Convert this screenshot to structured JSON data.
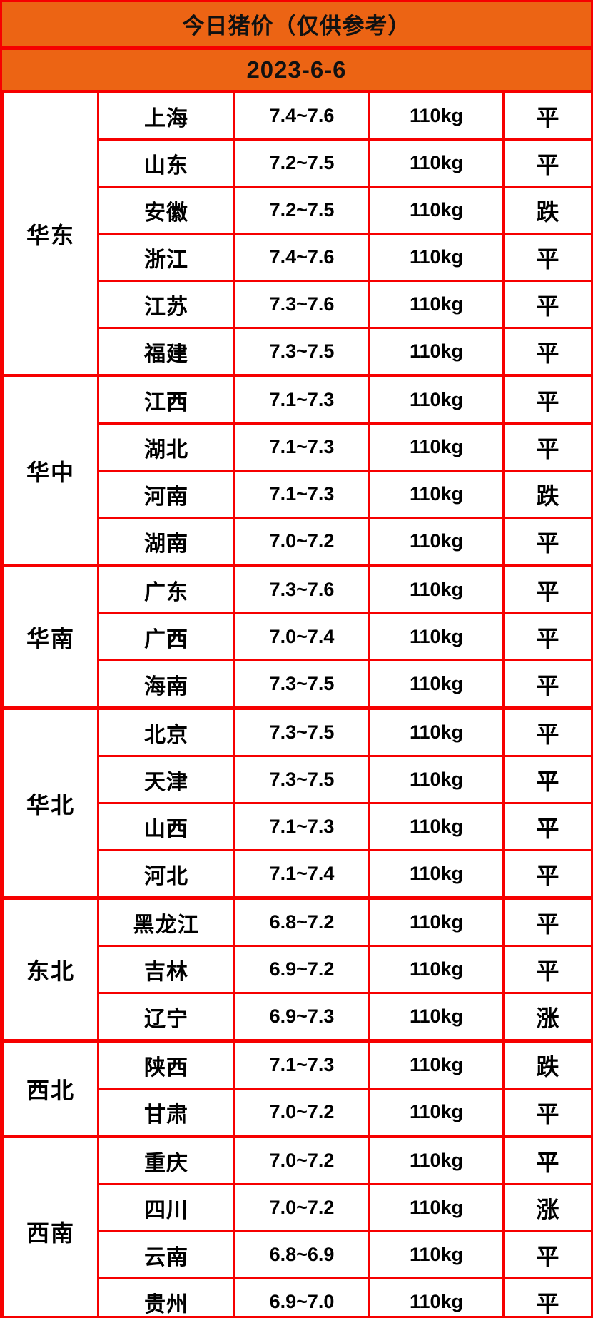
{
  "header": {
    "title": "今日猪价（仅供参考）",
    "date": "2023-6-6"
  },
  "colors": {
    "band_orange": "#ec6414",
    "grid_red": "#f60000",
    "status_flat": "#000000",
    "status_down_green": "#2fd300",
    "status_up_red": "#fb4a5a"
  },
  "table": {
    "status_class_map": {
      "平": "flat",
      "跌": "down",
      "涨": "up"
    },
    "regions": [
      {
        "name": "华东",
        "rows": [
          {
            "province": "上海",
            "price": "7.4~7.6",
            "weight": "110kg",
            "status": "平"
          },
          {
            "province": "山东",
            "price": "7.2~7.5",
            "weight": "110kg",
            "status": "平"
          },
          {
            "province": "安徽",
            "price": "7.2~7.5",
            "weight": "110kg",
            "status": "跌"
          },
          {
            "province": "浙江",
            "price": "7.4~7.6",
            "weight": "110kg",
            "status": "平"
          },
          {
            "province": "江苏",
            "price": "7.3~7.6",
            "weight": "110kg",
            "status": "平"
          },
          {
            "province": "福建",
            "price": "7.3~7.5",
            "weight": "110kg",
            "status": "平"
          }
        ]
      },
      {
        "name": "华中",
        "rows": [
          {
            "province": "江西",
            "price": "7.1~7.3",
            "weight": "110kg",
            "status": "平"
          },
          {
            "province": "湖北",
            "price": "7.1~7.3",
            "weight": "110kg",
            "status": "平"
          },
          {
            "province": "河南",
            "price": "7.1~7.3",
            "weight": "110kg",
            "status": "跌"
          },
          {
            "province": "湖南",
            "price": "7.0~7.2",
            "weight": "110kg",
            "status": "平"
          }
        ]
      },
      {
        "name": "华南",
        "rows": [
          {
            "province": "广东",
            "price": "7.3~7.6",
            "weight": "110kg",
            "status": "平"
          },
          {
            "province": "广西",
            "price": "7.0~7.4",
            "weight": "110kg",
            "status": "平"
          },
          {
            "province": "海南",
            "price": "7.3~7.5",
            "weight": "110kg",
            "status": "平"
          }
        ]
      },
      {
        "name": "华北",
        "rows": [
          {
            "province": "北京",
            "price": "7.3~7.5",
            "weight": "110kg",
            "status": "平"
          },
          {
            "province": "天津",
            "price": "7.3~7.5",
            "weight": "110kg",
            "status": "平"
          },
          {
            "province": "山西",
            "price": "7.1~7.3",
            "weight": "110kg",
            "status": "平"
          },
          {
            "province": "河北",
            "price": "7.1~7.4",
            "weight": "110kg",
            "status": "平"
          }
        ]
      },
      {
        "name": "东北",
        "rows": [
          {
            "province": "黑龙江",
            "price": "6.8~7.2",
            "weight": "110kg",
            "status": "平"
          },
          {
            "province": "吉林",
            "price": "6.9~7.2",
            "weight": "110kg",
            "status": "平"
          },
          {
            "province": "辽宁",
            "price": "6.9~7.3",
            "weight": "110kg",
            "status": "涨"
          }
        ]
      },
      {
        "name": "西北",
        "rows": [
          {
            "province": "陕西",
            "price": "7.1~7.3",
            "weight": "110kg",
            "status": "跌"
          },
          {
            "province": "甘肃",
            "price": "7.0~7.2",
            "weight": "110kg",
            "status": "平"
          }
        ]
      },
      {
        "name": "西南",
        "rows": [
          {
            "province": "重庆",
            "price": "7.0~7.2",
            "weight": "110kg",
            "status": "平"
          },
          {
            "province": "四川",
            "price": "7.0~7.2",
            "weight": "110kg",
            "status": "涨"
          },
          {
            "province": "云南",
            "price": "6.8~6.9",
            "weight": "110kg",
            "status": "平"
          },
          {
            "province": "贵州",
            "price": "6.9~7.0",
            "weight": "110kg",
            "status": "平"
          }
        ]
      }
    ]
  },
  "chart_data": {
    "type": "table",
    "title": "今日猪价（仅供参考）",
    "subtitle": "2023-6-6",
    "rows": [
      [
        "华东",
        "上海",
        "7.4~7.6",
        "110kg",
        "平"
      ],
      [
        "华东",
        "山东",
        "7.2~7.5",
        "110kg",
        "平"
      ],
      [
        "华东",
        "安徽",
        "7.2~7.5",
        "110kg",
        "跌"
      ],
      [
        "华东",
        "浙江",
        "7.4~7.6",
        "110kg",
        "平"
      ],
      [
        "华东",
        "江苏",
        "7.3~7.6",
        "110kg",
        "平"
      ],
      [
        "华东",
        "福建",
        "7.3~7.5",
        "110kg",
        "平"
      ],
      [
        "华中",
        "江西",
        "7.1~7.3",
        "110kg",
        "平"
      ],
      [
        "华中",
        "湖北",
        "7.1~7.3",
        "110kg",
        "平"
      ],
      [
        "华中",
        "河南",
        "7.1~7.3",
        "110kg",
        "跌"
      ],
      [
        "华中",
        "湖南",
        "7.0~7.2",
        "110kg",
        "平"
      ],
      [
        "华南",
        "广东",
        "7.3~7.6",
        "110kg",
        "平"
      ],
      [
        "华南",
        "广西",
        "7.0~7.4",
        "110kg",
        "平"
      ],
      [
        "华南",
        "海南",
        "7.3~7.5",
        "110kg",
        "平"
      ],
      [
        "华北",
        "北京",
        "7.3~7.5",
        "110kg",
        "平"
      ],
      [
        "华北",
        "天津",
        "7.3~7.5",
        "110kg",
        "平"
      ],
      [
        "华北",
        "山西",
        "7.1~7.3",
        "110kg",
        "平"
      ],
      [
        "华北",
        "河北",
        "7.1~7.4",
        "110kg",
        "平"
      ],
      [
        "东北",
        "黑龙江",
        "6.8~7.2",
        "110kg",
        "平"
      ],
      [
        "东北",
        "吉林",
        "6.9~7.2",
        "110kg",
        "平"
      ],
      [
        "东北",
        "辽宁",
        "6.9~7.3",
        "110kg",
        "涨"
      ],
      [
        "西北",
        "陕西",
        "7.1~7.3",
        "110kg",
        "跌"
      ],
      [
        "西北",
        "甘肃",
        "7.0~7.2",
        "110kg",
        "平"
      ],
      [
        "西南",
        "重庆",
        "7.0~7.2",
        "110kg",
        "平"
      ],
      [
        "西南",
        "四川",
        "7.0~7.2",
        "110kg",
        "涨"
      ],
      [
        "西南",
        "云南",
        "6.8~6.9",
        "110kg",
        "平"
      ],
      [
        "西南",
        "贵州",
        "6.9~7.0",
        "110kg",
        "平"
      ]
    ]
  }
}
